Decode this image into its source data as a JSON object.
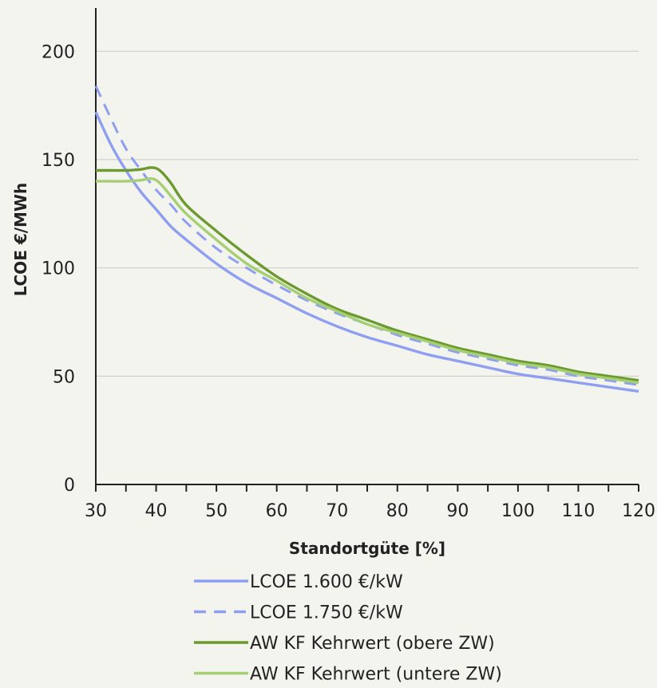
{
  "chart_data": {
    "type": "line",
    "xlabel": "Standortgüte [%]",
    "ylabel": "LCOE €/MWh",
    "xlim": [
      30,
      120
    ],
    "ylim": [
      0,
      220
    ],
    "x_ticks": [
      30,
      40,
      50,
      60,
      70,
      80,
      90,
      100,
      110,
      120
    ],
    "y_ticks": [
      0,
      50,
      100,
      150,
      200
    ],
    "grid": "horizontal",
    "legend_position": "bottom",
    "series": [
      {
        "name": "LCOE 1.600 €/kW",
        "color": "#8e9ef0",
        "dash": "solid",
        "x": [
          30,
          32.5,
          35,
          37.5,
          40,
          42.5,
          45,
          50,
          55,
          60,
          65,
          70,
          75,
          80,
          85,
          90,
          95,
          100,
          105,
          110,
          115,
          120
        ],
        "y": [
          172,
          157,
          145,
          135,
          127,
          119,
          113,
          102,
          93,
          86,
          79,
          73,
          68,
          64,
          60,
          57,
          54,
          51,
          49,
          47,
          45,
          43
        ]
      },
      {
        "name": "LCOE 1.750 €/kW",
        "color": "#8e9ef0",
        "dash": "dashed",
        "x": [
          30,
          32.5,
          35,
          37.5,
          40,
          42.5,
          45,
          50,
          55,
          60,
          65,
          70,
          75,
          80,
          85,
          90,
          95,
          100,
          105,
          110,
          115,
          120
        ],
        "y": [
          184,
          169,
          155,
          145,
          136,
          129,
          121,
          109,
          100,
          92,
          85,
          79,
          74,
          69,
          65,
          61,
          58,
          55,
          53,
          50,
          48,
          46
        ]
      },
      {
        "name": "AW KF Kehrwert (obere ZW)",
        "color": "#6b9a2e",
        "dash": "solid",
        "x": [
          30,
          32.5,
          35,
          37.5,
          39,
          40,
          41,
          42.5,
          45,
          50,
          55,
          60,
          65,
          70,
          75,
          80,
          85,
          90,
          95,
          100,
          105,
          110,
          115,
          120
        ],
        "y": [
          145,
          145,
          145,
          145.5,
          146.3,
          146,
          144,
          139,
          129,
          117,
          106,
          96,
          88,
          81,
          76,
          71,
          67,
          63,
          60,
          57,
          55,
          52,
          50,
          48
        ]
      },
      {
        "name": "AW KF Kehrwert (untere ZW)",
        "color": "#a6cf73",
        "dash": "solid",
        "x": [
          30,
          32.5,
          35,
          37.5,
          39,
          40,
          41,
          42.5,
          45,
          50,
          55,
          60,
          65,
          70,
          75,
          80,
          85,
          90,
          95,
          100,
          105,
          110,
          115,
          120
        ],
        "y": [
          140,
          140,
          140,
          140.5,
          141.2,
          140.5,
          138,
          133,
          125,
          113,
          102,
          94,
          86,
          80,
          74,
          70,
          66,
          62,
          59,
          56,
          54,
          51,
          49,
          47
        ]
      }
    ]
  }
}
